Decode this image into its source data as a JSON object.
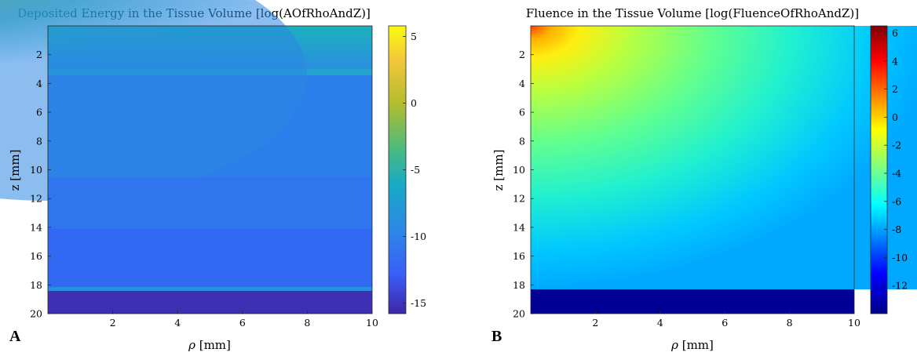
{
  "chart_data": [
    {
      "type": "heatmap",
      "panel_label": "A",
      "title": "Deposited Energy in the Tissue Volume [log(AOfRhoAndZ)]",
      "xlabel": "ρ [mm]",
      "ylabel": "z [mm]",
      "xlim": [
        0,
        10
      ],
      "ylim": [
        20,
        0
      ],
      "xticks": [
        2,
        4,
        6,
        8,
        10
      ],
      "yticks": [
        2,
        4,
        6,
        8,
        10,
        12,
        14,
        16,
        18,
        20
      ],
      "colorbar": {
        "range": [
          -15.8,
          5.8
        ],
        "ticks": [
          5,
          0,
          -5,
          -10,
          -15
        ],
        "colormap": "parula"
      },
      "layers": [
        {
          "z": [
            0,
            3.1
          ],
          "value_surface": 5,
          "value_typical": -6.5
        },
        {
          "z": [
            3.1,
            3.5
          ],
          "value": -7.3
        },
        {
          "z": [
            3.5,
            10.5
          ],
          "value": -10
        },
        {
          "z": [
            10.5,
            14.0
          ],
          "value": -10.3
        },
        {
          "z": [
            14.0,
            18.1
          ],
          "value": -11.0
        },
        {
          "z": [
            18.1,
            18.4
          ],
          "value": -8.8
        },
        {
          "z": [
            18.4,
            20.0
          ],
          "value": -14.8
        }
      ]
    },
    {
      "type": "heatmap",
      "panel_label": "B",
      "title": "Fluence in the Tissue Volume [log(FluenceOfRhoAndZ)]",
      "xlabel": "ρ [mm]",
      "ylabel": "z [mm]",
      "xlim": [
        0,
        10
      ],
      "ylim": [
        20,
        0
      ],
      "xticks": [
        2,
        4,
        6,
        8,
        10
      ],
      "yticks": [
        2,
        4,
        6,
        8,
        10,
        12,
        14,
        16,
        18,
        20
      ],
      "colorbar": {
        "range": [
          -14,
          6.5
        ],
        "ticks": [
          6,
          4,
          2,
          0,
          -2,
          -4,
          -6,
          -8,
          -10,
          -12
        ],
        "colormap": "jet"
      },
      "layers": [
        {
          "z": [
            0,
            18.3
          ],
          "value_source": 6,
          "value_far": -7
        },
        {
          "z": [
            18.3,
            20.0
          ],
          "value": -13.7
        }
      ]
    }
  ]
}
